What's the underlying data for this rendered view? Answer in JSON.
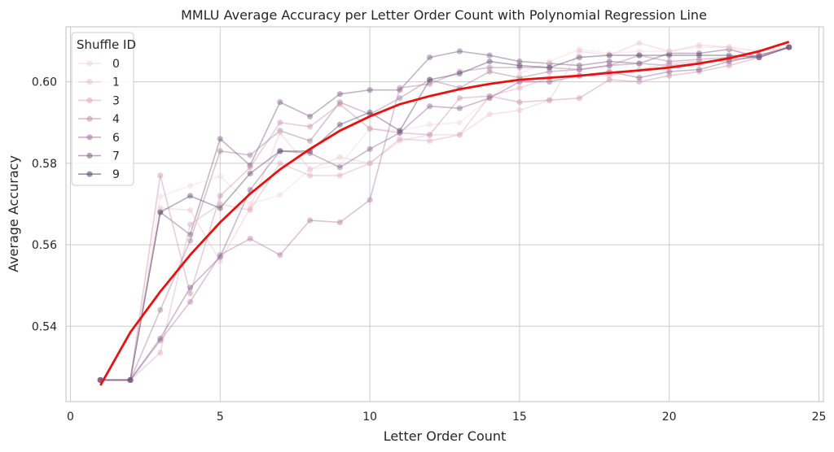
{
  "chart_data": {
    "type": "line",
    "title": "MMLU Average Accuracy per Letter Order Count with Polynomial Regression Line",
    "xlabel": "Letter Order Count",
    "ylabel": "Average Accuracy",
    "xlim": [
      -0.15,
      25.15
    ],
    "ylim": [
      0.5215,
      0.6135
    ],
    "xticks": [
      0,
      5,
      10,
      15,
      20,
      25
    ],
    "yticks": [
      0.54,
      0.56,
      0.58,
      0.6
    ],
    "ytick_labels": [
      "0.54",
      "0.56",
      "0.58",
      "0.60"
    ],
    "grid": true,
    "legend": {
      "title": "Shuffle ID",
      "placement": "top-left"
    },
    "x": [
      1,
      2,
      3,
      4,
      5,
      6,
      7,
      8,
      9,
      10,
      11,
      12,
      13,
      14,
      15,
      16,
      17,
      18,
      19,
      20,
      21,
      22,
      23,
      24
    ],
    "series": [
      {
        "name": "0",
        "color": "#f2d7dd",
        "values": [
          0.5268,
          0.5268,
          0.5718,
          0.5745,
          0.5768,
          0.57,
          0.5722,
          0.5785,
          0.5795,
          0.5885,
          0.588,
          0.5895,
          0.59,
          0.596,
          0.602,
          0.605,
          0.608,
          0.607,
          0.6075,
          0.6075,
          0.6085,
          0.6085,
          0.606,
          0.6085
        ]
      },
      {
        "name": "1",
        "color": "#ebc4cf",
        "values": [
          0.5268,
          0.5268,
          0.569,
          0.5685,
          0.556,
          0.569,
          0.5875,
          0.5785,
          0.5815,
          0.58,
          0.5855,
          0.587,
          0.587,
          0.592,
          0.593,
          0.5955,
          0.6075,
          0.6065,
          0.6095,
          0.6075,
          0.609,
          0.6085,
          0.6075,
          0.6085
        ]
      },
      {
        "name": "3",
        "color": "#dfaabd",
        "values": [
          0.5268,
          0.5268,
          0.5335,
          0.565,
          0.57,
          0.5685,
          0.58,
          0.577,
          0.577,
          0.58,
          0.586,
          0.5855,
          0.587,
          0.5965,
          0.5985,
          0.601,
          0.6015,
          0.6015,
          0.603,
          0.6045,
          0.605,
          0.605,
          0.6065,
          0.6085
        ]
      },
      {
        "name": "4",
        "color": "#c993ab",
        "values": [
          0.5268,
          0.5268,
          0.577,
          0.548,
          0.572,
          0.579,
          0.59,
          0.589,
          0.5945,
          0.5885,
          0.5875,
          0.587,
          0.596,
          0.5965,
          0.595,
          0.5955,
          0.596,
          0.6005,
          0.6,
          0.6015,
          0.6025,
          0.604,
          0.606,
          0.6085
        ]
      },
      {
        "name": "6",
        "color": "#ac7ca1",
        "values": [
          0.5268,
          0.5268,
          0.5365,
          0.546,
          0.5575,
          0.5615,
          0.5575,
          0.566,
          0.5655,
          0.571,
          0.5985,
          0.5995,
          0.6025,
          0.6035,
          0.6035,
          0.6035,
          0.603,
          0.604,
          0.6065,
          0.605,
          0.6055,
          0.606,
          0.6065,
          0.6085
        ]
      },
      {
        "name": "7",
        "color": "#8b6592",
        "values": [
          0.5268,
          0.5268,
          0.537,
          0.5495,
          0.557,
          0.5735,
          0.583,
          0.5825,
          0.579,
          0.5835,
          0.5875,
          0.594,
          0.5935,
          0.596,
          0.6,
          0.6,
          0.6015,
          0.6025,
          0.601,
          0.6025,
          0.603,
          0.605,
          0.6065,
          0.6085
        ]
      },
      {
        "name": "9",
        "color": "#5d4d6c",
        "values": [
          0.5268,
          0.5268,
          0.568,
          0.572,
          0.569,
          0.5775,
          0.583,
          0.583,
          0.5895,
          0.5925,
          0.588,
          0.6005,
          0.602,
          0.605,
          0.604,
          0.6035,
          0.606,
          0.6065,
          0.6065,
          0.6065,
          0.6065,
          0.6065,
          0.606,
          0.6085
        ]
      }
    ],
    "extra_series": [
      {
        "color": "#7a5a80",
        "values": [
          0.5268,
          0.5268,
          0.568,
          0.5625,
          0.586,
          0.5795,
          0.595,
          0.5915,
          0.597,
          0.598,
          0.598,
          0.606,
          0.6075,
          0.6065,
          0.605,
          0.6045,
          0.604,
          0.605,
          0.6045,
          0.607,
          0.607,
          0.608,
          0.606,
          0.6085
        ]
      },
      {
        "color": "#a27f97",
        "values": [
          0.5268,
          0.5268,
          0.544,
          0.561,
          0.583,
          0.582,
          0.588,
          0.5855,
          0.595,
          0.592,
          0.596,
          0.6005,
          0.5985,
          0.6025,
          0.601,
          0.6025,
          0.603,
          0.604,
          0.6045,
          0.604,
          0.6045,
          0.6055,
          0.606,
          0.6085
        ]
      }
    ],
    "regression": {
      "color": "#e8110f",
      "x": [
        1,
        2,
        3,
        4,
        5,
        6,
        7,
        8,
        9,
        10,
        11,
        12,
        13,
        14,
        15,
        16,
        17,
        18,
        19,
        20,
        21,
        22,
        23,
        24
      ],
      "y": [
        0.5255,
        0.5385,
        0.5485,
        0.5575,
        0.5655,
        0.5725,
        0.5785,
        0.5835,
        0.588,
        0.5915,
        0.5945,
        0.5965,
        0.5982,
        0.5995,
        0.6005,
        0.601,
        0.6015,
        0.6022,
        0.6028,
        0.6035,
        0.6045,
        0.6058,
        0.6075,
        0.6098
      ]
    }
  }
}
